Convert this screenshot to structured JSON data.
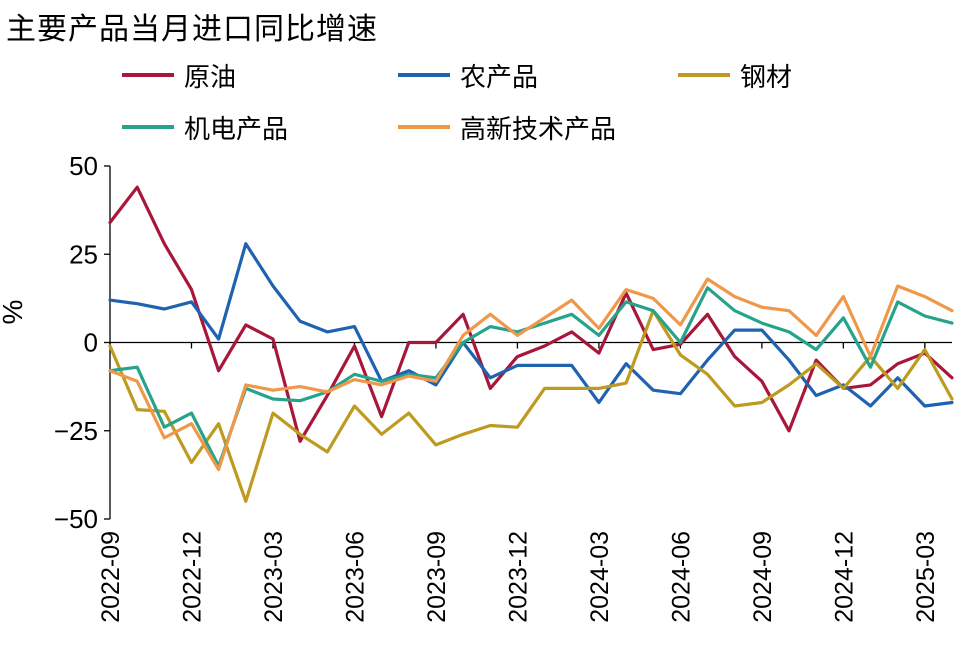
{
  "title": "主要产品当月进口同比增速",
  "chart_data": {
    "type": "line",
    "ylabel": "%",
    "ylim": [
      -50,
      50
    ],
    "yticks": [
      50,
      25,
      0,
      -25,
      -50
    ],
    "ytick_labels": [
      "50",
      "25",
      "0",
      "−25",
      "−50"
    ],
    "x": [
      "2022-09",
      "2022-10",
      "2022-11",
      "2022-12",
      "2023-01",
      "2023-02",
      "2023-03",
      "2023-04",
      "2023-05",
      "2023-06",
      "2023-07",
      "2023-08",
      "2023-09",
      "2023-10",
      "2023-11",
      "2023-12",
      "2024-01",
      "2024-02",
      "2024-03",
      "2024-04",
      "2024-05",
      "2024-06",
      "2024-07",
      "2024-08",
      "2024-09",
      "2024-10",
      "2024-11",
      "2024-12",
      "2025-01",
      "2025-02",
      "2025-03",
      "2025-04"
    ],
    "xtick_labels": [
      "2022-09",
      "2022-12",
      "2023-03",
      "2023-06",
      "2023-09",
      "2023-12",
      "2024-03",
      "2024-06",
      "2024-09",
      "2024-12",
      "2025-03"
    ],
    "xtick_index": [
      0,
      3,
      6,
      9,
      12,
      15,
      18,
      21,
      24,
      27,
      30
    ],
    "series": [
      {
        "name": "原油",
        "color": "#A8173A",
        "values": [
          34,
          44,
          28,
          15,
          -8,
          5,
          1,
          -28,
          -15,
          -1,
          -21,
          0,
          0,
          8,
          -13,
          -4,
          -1,
          3,
          -3,
          14,
          -2,
          -0.5,
          8,
          -4,
          -11,
          -25,
          -5,
          -13,
          -12,
          -6,
          -3,
          -10
        ]
      },
      {
        "name": "农产品",
        "color": "#1F63B0",
        "values": [
          12,
          11,
          9.5,
          11.5,
          1,
          28,
          16,
          6,
          3,
          4.5,
          -11,
          -8,
          -12,
          0,
          -10,
          -6.5,
          -6.5,
          -6.5,
          -17,
          -6,
          -13.5,
          -14.5,
          -5,
          3.5,
          3.5,
          -5,
          -15,
          -12,
          -18,
          -10,
          -18,
          -17
        ]
      },
      {
        "name": "钢材",
        "color": "#BE9B20",
        "values": [
          -1,
          -19,
          -19.5,
          -34,
          -23,
          -45,
          -20,
          -26,
          -31,
          -18,
          -26,
          -20,
          -29,
          -26,
          -23.5,
          -24,
          -13,
          -13,
          -13,
          -11.5,
          9,
          -3.5,
          -9,
          -18,
          -17,
          -12,
          -6,
          -13,
          -4,
          -13,
          -2,
          -16
        ]
      },
      {
        "name": "机电产品",
        "color": "#27A38B",
        "values": [
          -8,
          -7,
          -24,
          -20,
          -35,
          -13,
          -16,
          -16.5,
          -14,
          -9,
          -11,
          -9,
          -10,
          0,
          4.5,
          3,
          5.5,
          8,
          2,
          11.5,
          9,
          0,
          15.5,
          9,
          5.5,
          3,
          -2,
          7,
          -7,
          11.5,
          7.5,
          5.5
        ]
      },
      {
        "name": "高新技术产品",
        "color": "#F0984A",
        "values": [
          -8,
          -11,
          -27,
          -23,
          -36,
          -12,
          -13.5,
          -12.5,
          -14,
          -10.5,
          -12,
          -9.5,
          -11,
          2,
          8,
          2,
          7,
          12,
          4,
          15,
          12.5,
          5,
          18,
          13,
          10,
          9,
          2,
          13,
          -4,
          16,
          13,
          9
        ]
      }
    ]
  }
}
